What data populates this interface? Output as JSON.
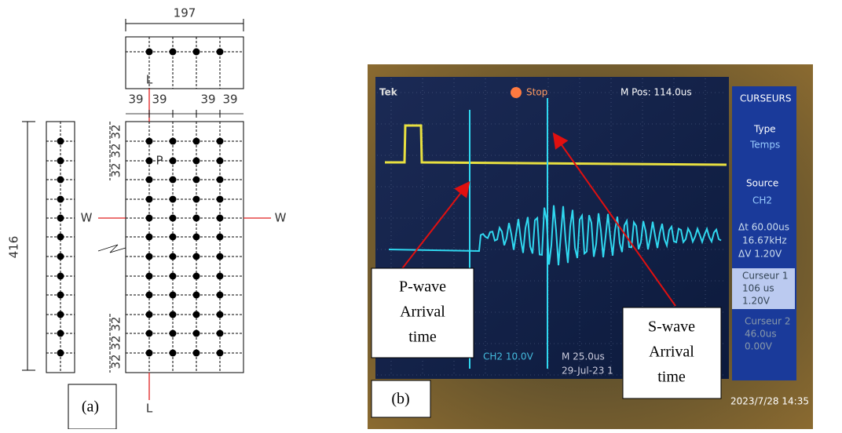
{
  "panel_a": {
    "label": "(a)",
    "top_width": "197",
    "spacing_left": [
      "39",
      "39"
    ],
    "spacing_right": [
      "39",
      "39"
    ],
    "height": "416",
    "spacing_upper": [
      "32",
      "32",
      "32"
    ],
    "spacing_lower": [
      "32",
      "32",
      "32"
    ],
    "section_top": "L",
    "section_bottom": "L",
    "section_left": "W",
    "section_right": "W",
    "point": "P"
  },
  "panel_b": {
    "label": "(b)",
    "p_wave": [
      "P-wave",
      "Arrival",
      "time"
    ],
    "s_wave": [
      "S-wave",
      "Arrival",
      "time"
    ],
    "timestamp": "2023/7/28  14:35",
    "scope": {
      "brand": "Tek",
      "status": "Stop",
      "m_pos": "M Pos: 114.0us",
      "menu": "CURSEURS",
      "type_label": "Type",
      "type_value": "Temps",
      "source_label": "Source",
      "source_value": "CH2",
      "dt": "Δt 60.00us",
      "freq": "16.67kHz",
      "dv": "ΔV 1.20V",
      "cursor1": [
        "Curseur 1",
        "106 us",
        "1.20V"
      ],
      "cursor2": [
        "Curseur 2",
        "46.0us",
        "0.00V"
      ],
      "ch2": "CH2  10.0V",
      "timebase": "M 25.0us",
      "date": "29-Jul-23 1"
    }
  }
}
